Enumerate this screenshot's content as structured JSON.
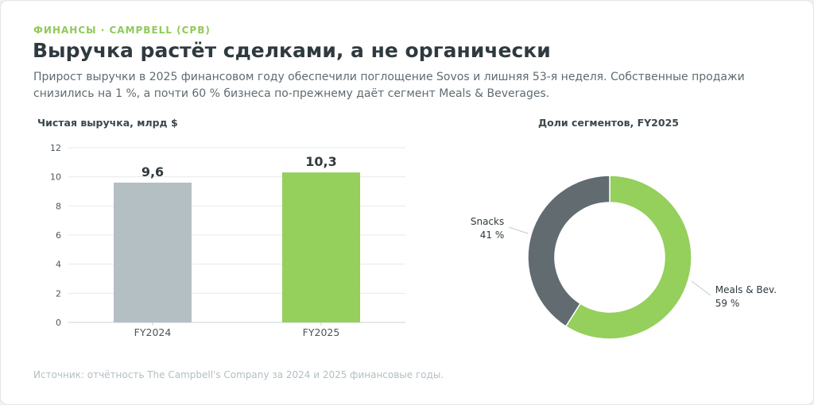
{
  "header": {
    "kicker": "ФИНАНСЫ · CAMPBELL (CPB)",
    "title": "Выручка растёт сделками, а не органически",
    "subtitle": "Прирост выручки в 2025 финансовом году обеспечили поглощение Sovos и лишняя 53-я неделя. Собственные продажи снизились на 1 %, а почти 60 % бизнеса по-прежнему даёт сегмент Meals & Beverages."
  },
  "chart_data": [
    {
      "type": "bar",
      "title": "Чистая выручка, млрд $",
      "categories": [
        "FY2024",
        "FY2025"
      ],
      "values": [
        9.6,
        10.3
      ],
      "value_labels": [
        "9,6",
        "10,3"
      ],
      "ylim": [
        0,
        12
      ],
      "yticks": [
        0,
        2,
        4,
        6,
        8,
        10,
        12
      ],
      "grid": true,
      "colors": [
        "#b4bfc4",
        "#95cf5c"
      ]
    },
    {
      "type": "pie",
      "subtype": "donut",
      "title": "Доли сегментов, FY2025",
      "slices": [
        {
          "label": "Meals & Bev.",
          "value": 59,
          "value_label": "59 %",
          "color": "#95cf5c"
        },
        {
          "label": "Snacks",
          "value": 41,
          "value_label": "41 %",
          "color": "#616b70"
        }
      ]
    }
  ],
  "footer": {
    "source": "Источник: отчётность The Campbell's Company за 2024 и 2025 финансовые годы."
  }
}
